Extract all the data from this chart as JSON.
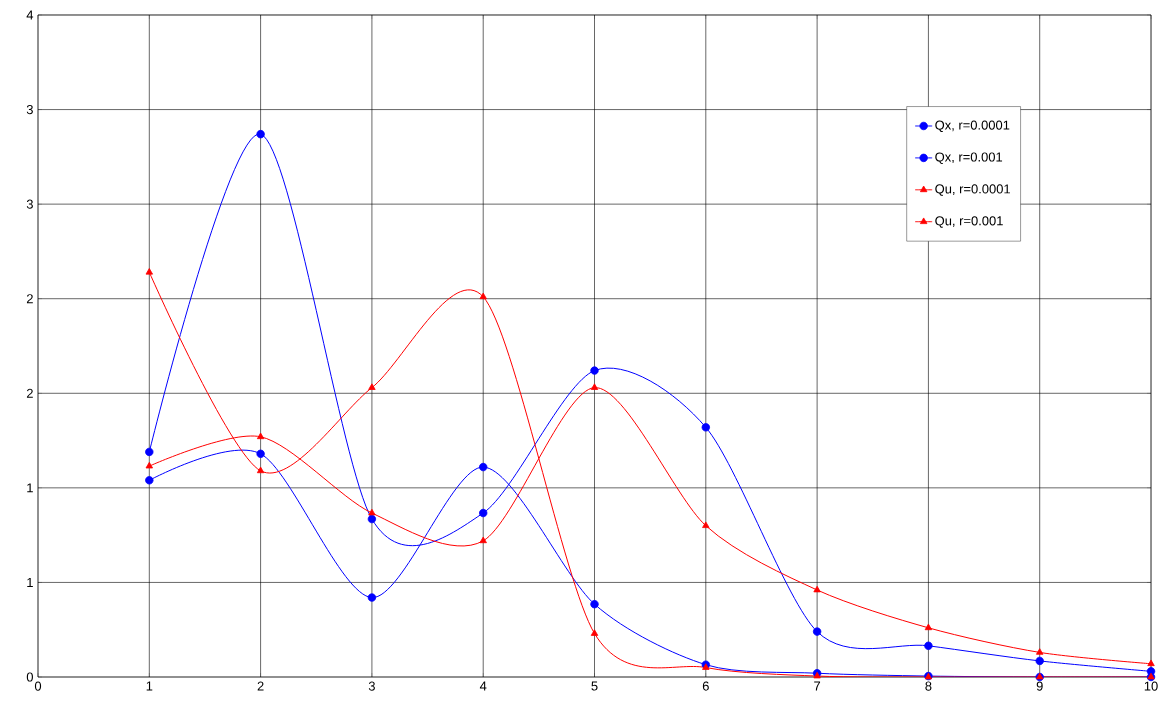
{
  "chart_data": {
    "type": "line",
    "x": [
      1,
      2,
      3,
      4,
      5,
      6,
      7,
      8,
      9,
      10
    ],
    "xlim": [
      0,
      10
    ],
    "xticks": [
      0,
      1,
      2,
      3,
      4,
      5,
      6,
      7,
      8,
      9,
      10
    ],
    "ylim": [
      0,
      3.5
    ],
    "yticks": [
      0,
      {
        "value": 0.5,
        "label": "1"
      },
      1,
      {
        "value": 1.5,
        "label": "2"
      },
      2,
      {
        "value": 2.5,
        "label": "3"
      },
      3,
      {
        "value": 3.5,
        "label": "4"
      }
    ],
    "grid": true,
    "legend": "top right",
    "line_style": "solid",
    "series": [
      {
        "name": "Qx, r=0.0001",
        "color": "#0000ff",
        "marker": "circle",
        "values": [
          1.19,
          2.87,
          0.835,
          0.867,
          1.62,
          1.32,
          0.24,
          0.165,
          0.085,
          0.03
        ]
      },
      {
        "name": "Qx, r=0.001",
        "color": "#0000ff",
        "marker": "circle",
        "values": [
          1.04,
          1.18,
          0.42,
          1.11,
          0.385,
          0.065,
          0.02,
          0.005,
          0,
          0
        ]
      },
      {
        "name": "Qu, r=0.0001",
        "color": "#ff0000",
        "marker": "triangle",
        "values": [
          1.115,
          1.27,
          0.867,
          0.72,
          1.53,
          0.8,
          0.46,
          0.26,
          0.13,
          0.07
        ]
      },
      {
        "name": "Qu, r=0.001",
        "color": "#ff0000",
        "marker": "triangle",
        "values": [
          2.14,
          1.09,
          1.53,
          2.01,
          0.23,
          0.05,
          0.005,
          0,
          0,
          0
        ]
      }
    ]
  }
}
